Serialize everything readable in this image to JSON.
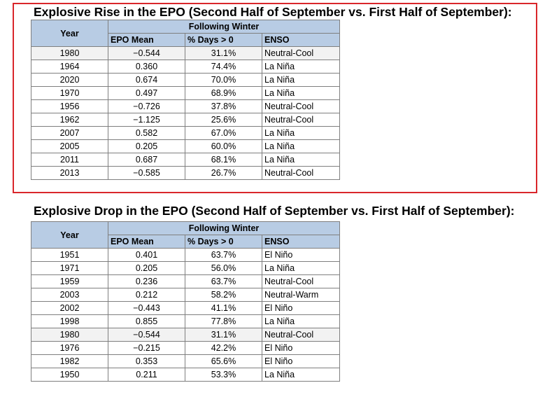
{
  "rise": {
    "title": "Explosive Rise in the EPO (Second Half of September vs. First Half of September):",
    "header": {
      "year": "Year",
      "group": "Following Winter",
      "epo_mean": "EPO Mean",
      "pct_days": "% Days > 0",
      "enso": "ENSO"
    },
    "rows": [
      {
        "year": "1980",
        "epo_mean": "−0.544",
        "pct_days": "31.1%",
        "enso": "Neutral-Cool"
      },
      {
        "year": "1964",
        "epo_mean": "0.360",
        "pct_days": "74.4%",
        "enso": "La Niña"
      },
      {
        "year": "2020",
        "epo_mean": "0.674",
        "pct_days": "70.0%",
        "enso": "La Niña"
      },
      {
        "year": "1970",
        "epo_mean": "0.497",
        "pct_days": "68.9%",
        "enso": "La Niña"
      },
      {
        "year": "1956",
        "epo_mean": "−0.726",
        "pct_days": "37.8%",
        "enso": "Neutral-Cool"
      },
      {
        "year": "1962",
        "epo_mean": "−1.125",
        "pct_days": "25.6%",
        "enso": "Neutral-Cool"
      },
      {
        "year": "2007",
        "epo_mean": "0.582",
        "pct_days": "67.0%",
        "enso": "La Niña"
      },
      {
        "year": "2005",
        "epo_mean": "0.205",
        "pct_days": "60.0%",
        "enso": "La Niña"
      },
      {
        "year": "2011",
        "epo_mean": "0.687",
        "pct_days": "68.1%",
        "enso": "La Niña"
      },
      {
        "year": "2013",
        "epo_mean": "−0.585",
        "pct_days": "26.7%",
        "enso": "Neutral-Cool"
      }
    ]
  },
  "drop": {
    "title": "Explosive Drop in the EPO (Second Half of September vs. First Half of September):",
    "header": {
      "year": "Year",
      "group": "Following Winter",
      "epo_mean": "EPO Mean",
      "pct_days": "% Days > 0",
      "enso": "ENSO"
    },
    "rows": [
      {
        "year": "1951",
        "epo_mean": "0.401",
        "pct_days": "63.7%",
        "enso": "El Niño"
      },
      {
        "year": "1971",
        "epo_mean": "0.205",
        "pct_days": "56.0%",
        "enso": "La Niña"
      },
      {
        "year": "1959",
        "epo_mean": "0.236",
        "pct_days": "63.7%",
        "enso": "Neutral-Cool"
      },
      {
        "year": "2003",
        "epo_mean": "0.212",
        "pct_days": "58.2%",
        "enso": "Neutral-Warm"
      },
      {
        "year": "2002",
        "epo_mean": "−0.443",
        "pct_days": "41.1%",
        "enso": "El Niño"
      },
      {
        "year": "1998",
        "epo_mean": "0.855",
        "pct_days": "77.8%",
        "enso": "La Niña"
      },
      {
        "year": "1980",
        "epo_mean": "−0.544",
        "pct_days": "31.1%",
        "enso": "Neutral-Cool"
      },
      {
        "year": "1976",
        "epo_mean": "−0.215",
        "pct_days": "42.2%",
        "enso": "El Niño"
      },
      {
        "year": "1982",
        "epo_mean": "0.353",
        "pct_days": "65.6%",
        "enso": "El Niño"
      },
      {
        "year": "1950",
        "epo_mean": "0.211",
        "pct_days": "53.3%",
        "enso": "La Niña"
      }
    ]
  },
  "colors": {
    "header_fill": "#b8cce4",
    "highlight_border": "#d9262b",
    "shaded_row": "#f2f2f2"
  }
}
